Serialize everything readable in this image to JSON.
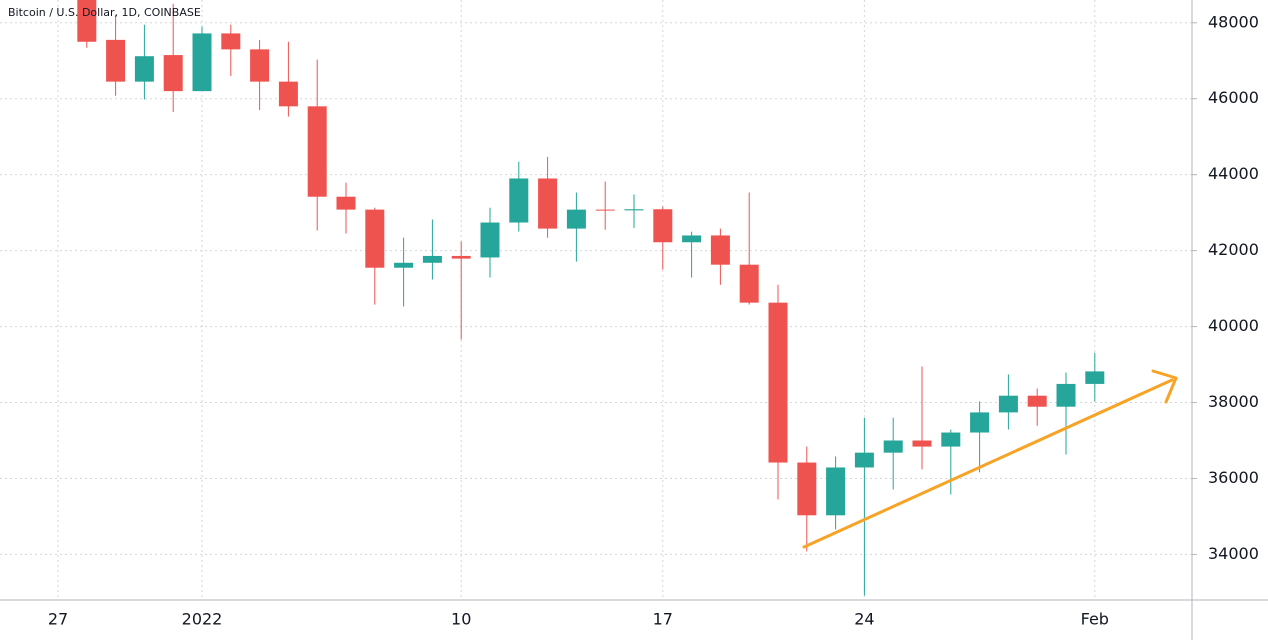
{
  "chart_data": {
    "type": "candlestick",
    "title": "Bitcoin / U.S. Dollar, 1D, COINBASE",
    "categories": [
      "27",
      null,
      null,
      null,
      null,
      "2022",
      null,
      null,
      null,
      null,
      null,
      null,
      null,
      null,
      "10",
      null,
      null,
      null,
      null,
      null,
      null,
      "17",
      null,
      null,
      null,
      null,
      null,
      null,
      "24",
      null,
      null,
      null,
      null,
      null,
      null,
      null,
      "Feb"
    ],
    "open": [
      null,
      48700,
      47550,
      46450,
      47150,
      46200,
      47720,
      47300,
      46450,
      45800,
      43420,
      43080,
      41550,
      41680,
      41860,
      41820,
      42740,
      43900,
      42580,
      43080,
      43060,
      43090,
      42220,
      42400,
      41630,
      40630,
      36420,
      35030,
      36290,
      36680,
      37000,
      36840,
      37210,
      37740,
      38180,
      37890,
      38490
    ],
    "high": [
      null,
      48700,
      48200,
      47950,
      48500,
      47900,
      47950,
      47550,
      47500,
      47030,
      43790,
      43130,
      42340,
      42820,
      42240,
      43130,
      44340,
      44470,
      43530,
      43820,
      43480,
      43160,
      42500,
      42580,
      43530,
      41100,
      36840,
      36580,
      37600,
      37600,
      38950,
      37290,
      38030,
      38740,
      38370,
      38790,
      39310
    ],
    "low": [
      null,
      47340,
      46080,
      45980,
      45650,
      46200,
      46600,
      45700,
      45530,
      42530,
      42450,
      40580,
      40530,
      41240,
      39660,
      41290,
      42500,
      42340,
      41710,
      42550,
      42600,
      41500,
      41290,
      41100,
      40580,
      35450,
      34080,
      34660,
      32920,
      35710,
      36240,
      35580,
      36160,
      37290,
      37390,
      36630,
      38030
    ],
    "close": [
      null,
      47500,
      46450,
      47120,
      46200,
      47720,
      47300,
      46450,
      45800,
      43420,
      43080,
      41550,
      41680,
      41860,
      41790,
      42740,
      43900,
      42580,
      43080,
      43060,
      43090,
      42220,
      42400,
      41630,
      40630,
      36420,
      35030,
      36290,
      36680,
      37000,
      36840,
      37210,
      37740,
      38180,
      37890,
      38490,
      38820
    ],
    "up_color": "#26a69a",
    "down_color": "#ef5350",
    "ylim": [
      32800,
      48600
    ],
    "yticks": [
      34000,
      36000,
      38000,
      40000,
      42000,
      44000,
      46000,
      48000
    ],
    "grid": true
  }
}
